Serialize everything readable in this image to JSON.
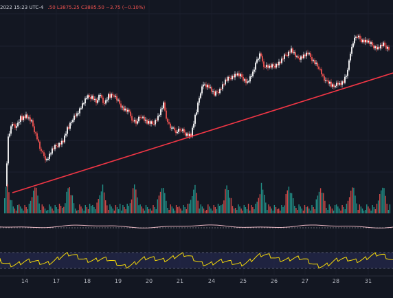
{
  "header": {
    "timestamp": "2022 15:23 UTC-4",
    "ohlc_text": ".50  L3875.25  C3885.50  −3.75 (−0.10%)"
  },
  "colors": {
    "background": "#131722",
    "up": "#26a69a",
    "down": "#ef5350",
    "candle": "#ffffff",
    "trendline": "#f23645",
    "oscillator": "#f5d90a",
    "osc_band": "#2a2e5a"
  },
  "chart_data": {
    "type": "candlestick",
    "x_tick_labels": [
      "14",
      "17",
      "18",
      "19",
      "20",
      "21",
      "24",
      "25",
      "26",
      "27",
      "28",
      "31"
    ],
    "annotations": [
      "trendline"
    ],
    "grid": true,
    "panes": [
      "price",
      "volume",
      "indicator-line",
      "oscillator"
    ]
  }
}
